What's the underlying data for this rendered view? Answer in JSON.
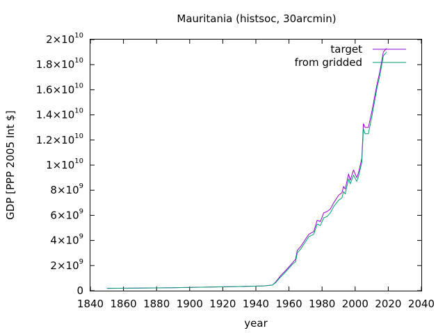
{
  "chart_data": {
    "type": "line",
    "title": "Mauritania (histsoc, 30arcmin)",
    "xlabel": "year",
    "ylabel": "GDP [PPP 2005 Int $]",
    "xlim": [
      1840,
      2040
    ],
    "ylim": [
      0,
      20000000000
    ],
    "x_ticks": [
      {
        "value": 1840,
        "label": "1840"
      },
      {
        "value": 1860,
        "label": "1860"
      },
      {
        "value": 1880,
        "label": "1880"
      },
      {
        "value": 1900,
        "label": "1900"
      },
      {
        "value": 1920,
        "label": "1920"
      },
      {
        "value": 1940,
        "label": "1940"
      },
      {
        "value": 1960,
        "label": "1960"
      },
      {
        "value": 1980,
        "label": "1980"
      },
      {
        "value": 2000,
        "label": "2000"
      },
      {
        "value": 2020,
        "label": "2020"
      },
      {
        "value": 2040,
        "label": "2040"
      }
    ],
    "y_ticks": [
      {
        "value": 0,
        "mant": "0",
        "exp": ""
      },
      {
        "value": 2000000000,
        "mant": "2×10",
        "exp": "9"
      },
      {
        "value": 4000000000,
        "mant": "4×10",
        "exp": "9"
      },
      {
        "value": 6000000000,
        "mant": "6×10",
        "exp": "9"
      },
      {
        "value": 8000000000,
        "mant": "8×10",
        "exp": "9"
      },
      {
        "value": 10000000000,
        "mant": "1×10",
        "exp": "10"
      },
      {
        "value": 12000000000,
        "mant": "1.2×10",
        "exp": "10"
      },
      {
        "value": 14000000000,
        "mant": "1.4×10",
        "exp": "10"
      },
      {
        "value": 16000000000,
        "mant": "1.6×10",
        "exp": "10"
      },
      {
        "value": 18000000000,
        "mant": "1.8×10",
        "exp": "10"
      },
      {
        "value": 20000000000,
        "mant": "2×10",
        "exp": "10"
      }
    ],
    "grid": false,
    "legend_position": "top-right",
    "series": [
      {
        "name": "target",
        "color": "#9400d3",
        "points": [
          [
            1850,
            190000000.0
          ],
          [
            1870,
            210000000.0
          ],
          [
            1890,
            240000000.0
          ],
          [
            1910,
            280000000.0
          ],
          [
            1930,
            330000000.0
          ],
          [
            1945,
            380000000.0
          ],
          [
            1950,
            450000000.0
          ],
          [
            1952,
            700000000.0
          ],
          [
            1955,
            1200000000.0
          ],
          [
            1958,
            1600000000.0
          ],
          [
            1962,
            2200000000.0
          ],
          [
            1964,
            2500000000.0
          ],
          [
            1965,
            3200000000.0
          ],
          [
            1967,
            3500000000.0
          ],
          [
            1970,
            4100000000.0
          ],
          [
            1972,
            4500000000.0
          ],
          [
            1975,
            4700000000.0
          ],
          [
            1977,
            5600000000.0
          ],
          [
            1979,
            5500000000.0
          ],
          [
            1981,
            6200000000.0
          ],
          [
            1983,
            6300000000.0
          ],
          [
            1985,
            6500000000.0
          ],
          [
            1987,
            7000000000.0
          ],
          [
            1990,
            7600000000.0
          ],
          [
            1992,
            7800000000.0
          ],
          [
            1993,
            8300000000.0
          ],
          [
            1994,
            8100000000.0
          ],
          [
            1996,
            9300000000.0
          ],
          [
            1997,
            8800000000.0
          ],
          [
            1999,
            9600000000.0
          ],
          [
            2001,
            9000000000.0
          ],
          [
            2002,
            9400000000.0
          ],
          [
            2004,
            10500000000.0
          ],
          [
            2005,
            13300000000.0
          ],
          [
            2006,
            13000000000.0
          ],
          [
            2008,
            13000000000.0
          ],
          [
            2010,
            14200000000.0
          ],
          [
            2013,
            16300000000.0
          ],
          [
            2015,
            17500000000.0
          ],
          [
            2017,
            19000000000.0
          ],
          [
            2019,
            19300000000.0
          ]
        ]
      },
      {
        "name": "from gridded",
        "color": "#009e73",
        "points": [
          [
            1850,
            190000000.0
          ],
          [
            1870,
            210000000.0
          ],
          [
            1890,
            240000000.0
          ],
          [
            1910,
            280000000.0
          ],
          [
            1930,
            330000000.0
          ],
          [
            1945,
            380000000.0
          ],
          [
            1950,
            450000000.0
          ],
          [
            1952,
            650000000.0
          ],
          [
            1955,
            1100000000.0
          ],
          [
            1958,
            1500000000.0
          ],
          [
            1962,
            2100000000.0
          ],
          [
            1964,
            2300000000.0
          ],
          [
            1965,
            3000000000.0
          ],
          [
            1967,
            3300000000.0
          ],
          [
            1970,
            3900000000.0
          ],
          [
            1972,
            4300000000.0
          ],
          [
            1975,
            4500000000.0
          ],
          [
            1977,
            5300000000.0
          ],
          [
            1979,
            5200000000.0
          ],
          [
            1981,
            5800000000.0
          ],
          [
            1983,
            5900000000.0
          ],
          [
            1985,
            6200000000.0
          ],
          [
            1987,
            6700000000.0
          ],
          [
            1990,
            7200000000.0
          ],
          [
            1992,
            7400000000.0
          ],
          [
            1993,
            7900000000.0
          ],
          [
            1994,
            7700000000.0
          ],
          [
            1996,
            8900000000.0
          ],
          [
            1997,
            8500000000.0
          ],
          [
            1999,
            9200000000.0
          ],
          [
            2001,
            8700000000.0
          ],
          [
            2002,
            9100000000.0
          ],
          [
            2004,
            10200000000.0
          ],
          [
            2005,
            12900000000.0
          ],
          [
            2006,
            12500000000.0
          ],
          [
            2008,
            12500000000.0
          ],
          [
            2010,
            13800000000.0
          ],
          [
            2013,
            16000000000.0
          ],
          [
            2015,
            17200000000.0
          ],
          [
            2017,
            18700000000.0
          ],
          [
            2019,
            19000000000.0
          ]
        ]
      }
    ]
  }
}
